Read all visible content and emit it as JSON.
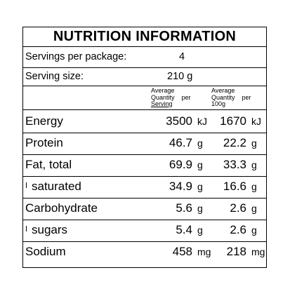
{
  "title": "NUTRITION INFORMATION",
  "servings_per_package": {
    "label": "Servings per package:",
    "value": "4"
  },
  "serving_size": {
    "label": "Serving size:",
    "value": "210",
    "unit": "g"
  },
  "columns": {
    "per_serving": [
      "Average",
      "Quantity    per",
      "Serving"
    ],
    "per_100g": [
      "Average",
      "Quantity    per",
      "100g"
    ]
  },
  "rows": [
    {
      "label": "Energy",
      "indent": false,
      "serving": "3500",
      "serving_unit": "kJ",
      "per100": "1670",
      "per100_unit": "kJ"
    },
    {
      "label": "Protein",
      "indent": false,
      "serving": "46.7",
      "serving_unit": "g",
      "per100": "22.2",
      "per100_unit": "g"
    },
    {
      "label": "Fat, total",
      "indent": false,
      "serving": "69.9",
      "serving_unit": "g",
      "per100": "33.3",
      "per100_unit": "g"
    },
    {
      "label": "saturated",
      "indent": true,
      "serving": "34.9",
      "serving_unit": "g",
      "per100": "16.6",
      "per100_unit": "g"
    },
    {
      "label": "Carbohydrate",
      "indent": false,
      "serving": "5.6",
      "serving_unit": "g",
      "per100": "2.6",
      "per100_unit": "g"
    },
    {
      "label": "sugars",
      "indent": true,
      "serving": "5.4",
      "serving_unit": "g",
      "per100": "2.6",
      "per100_unit": "g"
    },
    {
      "label": "Sodium",
      "indent": false,
      "serving": "458",
      "serving_unit": "mg",
      "per100": "218",
      "per100_unit": "mg"
    }
  ]
}
